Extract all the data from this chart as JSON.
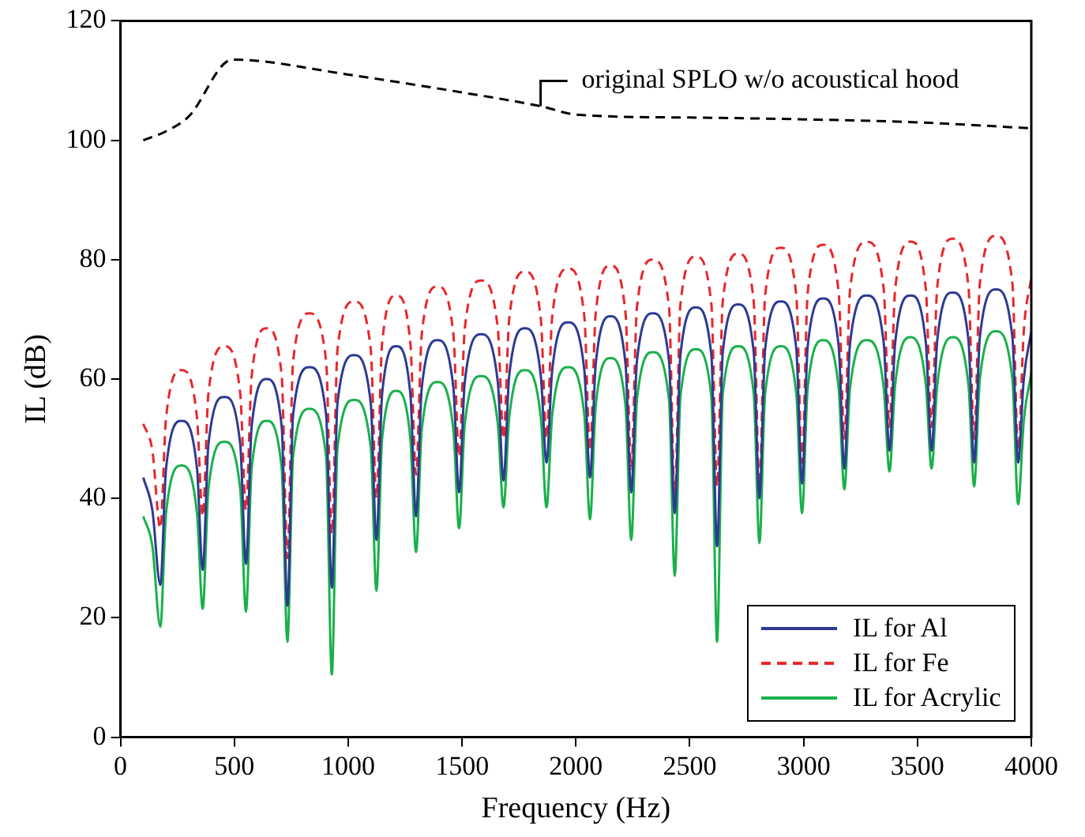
{
  "chart_data": {
    "type": "line",
    "xlabel": "Frequency (Hz)",
    "ylabel": "IL (dB)",
    "x": [
      100,
      140,
      175,
      200,
      268,
      336,
      361,
      386,
      456,
      526,
      551,
      576,
      642,
      708,
      733,
      758,
      830,
      903,
      928,
      953,
      1026,
      1099,
      1124,
      1149,
      1211,
      1273,
      1298,
      1323,
      1392,
      1462,
      1487,
      1512,
      1584,
      1657,
      1682,
      1707,
      1776,
      1846,
      1871,
      1896,
      1966,
      2037,
      2062,
      2087,
      2152,
      2218,
      2243,
      2268,
      2338,
      2409,
      2434,
      2459,
      2527,
      2595,
      2620,
      2645,
      2713,
      2781,
      2806,
      2831,
      2900,
      2968,
      2993,
      3018,
      3086,
      3154,
      3179,
      3204,
      3278,
      3352,
      3377,
      3402,
      3470,
      3537,
      3562,
      3587,
      3655,
      3724,
      3749,
      3774,
      3845,
      3917,
      3942,
      3967,
      4000
    ],
    "series": [
      {
        "name": "IL for Al",
        "color": "#2e3a92",
        "line_style": "solid",
        "values": [
          43.5,
          38,
          25.5,
          45,
          53,
          45,
          28,
          49,
          57,
          49,
          29,
          52,
          60,
          52,
          22,
          54,
          62,
          54,
          25,
          56,
          64,
          56,
          33,
          57.5,
          65.5,
          57.5,
          37,
          58.5,
          66.5,
          58.5,
          41,
          59.5,
          67.5,
          59.5,
          43,
          60.5,
          68.5,
          60.5,
          46,
          61.5,
          69.5,
          61.5,
          43.5,
          62.5,
          70.5,
          62.5,
          41,
          63,
          71,
          63,
          37.5,
          64,
          72,
          64,
          32,
          64.5,
          72.5,
          64.5,
          40,
          65,
          73,
          65,
          42.5,
          65.5,
          73.5,
          65.5,
          45,
          66,
          74,
          66,
          48,
          66,
          74,
          66,
          48,
          66.5,
          74.5,
          66.5,
          46,
          67,
          75,
          67,
          46,
          60,
          68
        ]
      },
      {
        "name": "IL for Fe",
        "color": "#e8262b",
        "line_style": "dashed",
        "values": [
          52.5,
          48,
          35,
          53.5,
          61.5,
          53.5,
          37,
          57.5,
          65.5,
          57.5,
          38,
          60.5,
          68.5,
          60.5,
          30,
          63,
          71,
          63,
          34,
          65,
          73,
          65,
          40,
          66,
          74,
          66,
          44,
          67.5,
          75.5,
          67.5,
          47,
          68.5,
          76.5,
          68.5,
          50,
          70,
          78,
          70,
          50,
          70.5,
          78.5,
          70.5,
          48,
          71,
          79,
          71,
          45,
          72,
          80,
          72,
          40,
          72.5,
          80.5,
          72.5,
          42,
          73,
          81,
          73,
          42,
          74,
          82,
          74,
          46,
          74.5,
          82.5,
          74.5,
          50,
          75,
          83,
          75,
          52,
          75,
          83,
          75,
          52,
          75.5,
          83.5,
          75.5,
          50,
          76,
          84,
          76,
          48,
          68,
          77
        ]
      },
      {
        "name": "IL for Acrylic",
        "color": "#19b04b",
        "line_style": "solid",
        "values": [
          37,
          32,
          18.5,
          37.5,
          45.5,
          37.5,
          21.5,
          41.5,
          49.5,
          41.5,
          21,
          45,
          53,
          45,
          16,
          47,
          55,
          47,
          10.5,
          48.5,
          56.5,
          48.5,
          24.5,
          50,
          58,
          50,
          31,
          51.5,
          59.5,
          51.5,
          35,
          52.5,
          60.5,
          52.5,
          38.5,
          53.5,
          61.5,
          53.5,
          38.5,
          54,
          62,
          54,
          36.5,
          55.5,
          63.5,
          55.5,
          33,
          56.5,
          64.5,
          56.5,
          27,
          57,
          65,
          57,
          16,
          57.5,
          65.5,
          57.5,
          32.5,
          57.5,
          65.5,
          57.5,
          37.5,
          58.5,
          66.5,
          58.5,
          41.5,
          58.5,
          66.5,
          58.5,
          44.5,
          59,
          67,
          59,
          45,
          59,
          67,
          59,
          42,
          60,
          68,
          60,
          39,
          53,
          61
        ]
      },
      {
        "color": "#000000",
        "line_style": "dashed",
        "x": [
          100,
          200,
          300,
          490,
          1000,
          1500,
          1845,
          2000,
          2500,
          3000,
          3500,
          4000
        ],
        "values": [
          100,
          101.5,
          104,
          113.5,
          111,
          108,
          105.7,
          104.3,
          103.8,
          103.5,
          103,
          102
        ]
      }
    ],
    "annotations": [
      {
        "text": "original SPLO w/o acoustical hood",
        "x": 1845,
        "y": 105.7
      }
    ],
    "xlim": [
      0,
      4000
    ],
    "xticks": [
      0,
      500,
      1000,
      1500,
      2000,
      2500,
      3000,
      3500,
      4000
    ],
    "ylim": [
      0,
      120
    ],
    "yticks": [
      0,
      20,
      40,
      60,
      80,
      100,
      120
    ],
    "legend": "bottom right",
    "marker": "none"
  }
}
